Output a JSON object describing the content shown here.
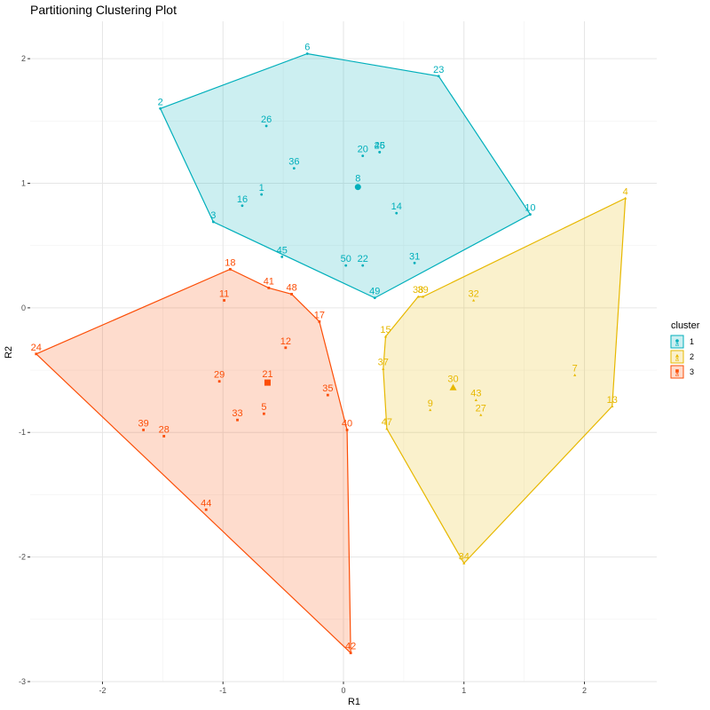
{
  "chart_data": {
    "type": "scatter",
    "title": "Partitioning Clustering Plot",
    "xlabel": "R1",
    "ylabel": "R2",
    "xlim": [
      -2.6,
      2.6
    ],
    "ylim": [
      -3.0,
      2.3
    ],
    "x_ticks": [
      -2,
      -1,
      0,
      1,
      2
    ],
    "y_ticks": [
      -3,
      -2,
      -1,
      0,
      1,
      2
    ],
    "x_tick_labels": [
      "-2",
      "-1",
      "0",
      "1",
      "2"
    ],
    "y_tick_labels": [
      "-3",
      "-2",
      "-1",
      "0",
      "1",
      "2"
    ],
    "grid": true,
    "legend": {
      "title": "cluster",
      "position": "right"
    },
    "series": [
      {
        "name": "1",
        "color": "#00AFBB",
        "fill": "#00AFBB",
        "marker": "circle",
        "hull": [
          "2",
          "6",
          "23",
          "10",
          "49",
          "3"
        ],
        "centroid": {
          "label": "8",
          "x": 0.12,
          "y": 0.97
        },
        "points": [
          {
            "label": "2",
            "x": -1.52,
            "y": 1.6
          },
          {
            "label": "6",
            "x": -0.3,
            "y": 2.04
          },
          {
            "label": "23",
            "x": 0.79,
            "y": 1.86
          },
          {
            "label": "10",
            "x": 1.55,
            "y": 0.75
          },
          {
            "label": "49",
            "x": 0.26,
            "y": 0.08
          },
          {
            "label": "3",
            "x": -1.08,
            "y": 0.69
          },
          {
            "label": "26",
            "x": -0.64,
            "y": 1.46
          },
          {
            "label": "25",
            "x": 0.3,
            "y": 1.25
          },
          {
            "label": "46",
            "x": 0.3,
            "y": 1.25
          },
          {
            "label": "20",
            "x": 0.16,
            "y": 1.22
          },
          {
            "label": "36",
            "x": -0.41,
            "y": 1.12
          },
          {
            "label": "1",
            "x": -0.68,
            "y": 0.91
          },
          {
            "label": "16",
            "x": -0.84,
            "y": 0.82
          },
          {
            "label": "14",
            "x": 0.44,
            "y": 0.76
          },
          {
            "label": "45",
            "x": -0.51,
            "y": 0.41
          },
          {
            "label": "31",
            "x": 0.59,
            "y": 0.36
          },
          {
            "label": "50",
            "x": 0.02,
            "y": 0.34
          },
          {
            "label": "22",
            "x": 0.16,
            "y": 0.34
          }
        ]
      },
      {
        "name": "2",
        "color": "#E7B800",
        "fill": "#E7B800",
        "marker": "triangle",
        "hull": [
          "4",
          "13",
          "34",
          "47",
          "37",
          "15",
          "38",
          "39"
        ],
        "centroid": {
          "label": "30",
          "x": 0.91,
          "y": -0.64
        },
        "points": [
          {
            "label": "4",
            "x": 2.34,
            "y": 0.88
          },
          {
            "label": "13",
            "x": 2.23,
            "y": -0.79
          },
          {
            "label": "34",
            "x": 1.0,
            "y": -2.05
          },
          {
            "label": "47",
            "x": 0.36,
            "y": -0.97
          },
          {
            "label": "37",
            "x": 0.33,
            "y": -0.49
          },
          {
            "label": "15",
            "x": 0.35,
            "y": -0.23
          },
          {
            "label": "38",
            "x": 0.62,
            "y": 0.09
          },
          {
            "label": "39",
            "x": 0.66,
            "y": 0.09
          },
          {
            "label": "32",
            "x": 1.08,
            "y": 0.06
          },
          {
            "label": "7",
            "x": 1.92,
            "y": -0.54
          },
          {
            "label": "43",
            "x": 1.1,
            "y": -0.74
          },
          {
            "label": "27",
            "x": 1.14,
            "y": -0.86
          },
          {
            "label": "9",
            "x": 0.72,
            "y": -0.82
          }
        ]
      },
      {
        "name": "3",
        "color": "#FC4E07",
        "fill": "#FC4E07",
        "marker": "square",
        "hull": [
          "24",
          "18",
          "41",
          "48",
          "17",
          "40",
          "42"
        ],
        "centroid": {
          "label": "21",
          "x": -0.63,
          "y": -0.6
        },
        "points": [
          {
            "label": "24",
            "x": -2.55,
            "y": -0.37
          },
          {
            "label": "18",
            "x": -0.94,
            "y": 0.31
          },
          {
            "label": "41",
            "x": -0.62,
            "y": 0.16
          },
          {
            "label": "48",
            "x": -0.43,
            "y": 0.11
          },
          {
            "label": "17",
            "x": -0.2,
            "y": -0.11
          },
          {
            "label": "40",
            "x": 0.03,
            "y": -0.98
          },
          {
            "label": "42",
            "x": 0.06,
            "y": -2.77
          },
          {
            "label": "11",
            "x": -0.99,
            "y": 0.06
          },
          {
            "label": "12",
            "x": -0.48,
            "y": -0.32
          },
          {
            "label": "29",
            "x": -1.03,
            "y": -0.59
          },
          {
            "label": "35",
            "x": -0.13,
            "y": -0.7
          },
          {
            "label": "33",
            "x": -0.88,
            "y": -0.9
          },
          {
            "label": "5",
            "x": -0.66,
            "y": -0.85
          },
          {
            "label": "39",
            "x": -1.66,
            "y": -0.98
          },
          {
            "label": "28",
            "x": -1.49,
            "y": -1.03
          },
          {
            "label": "44",
            "x": -1.14,
            "y": -1.62
          }
        ]
      }
    ]
  }
}
